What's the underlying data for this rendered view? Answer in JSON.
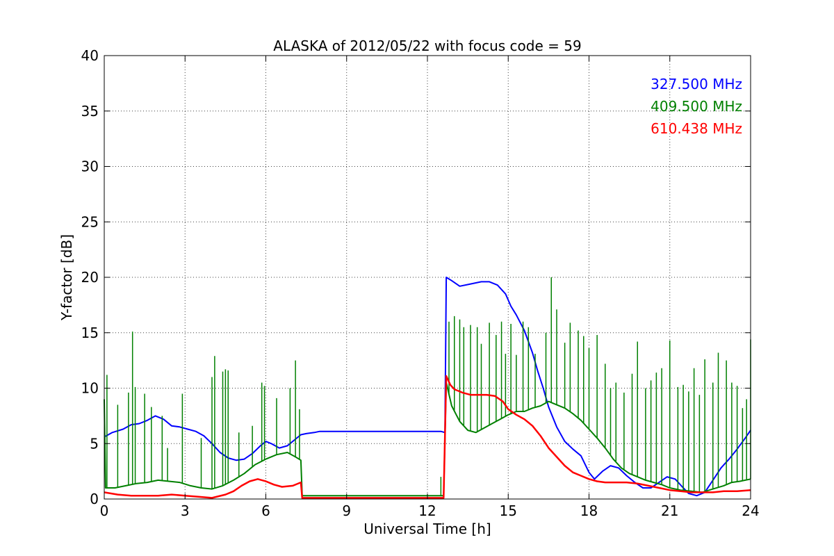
{
  "chart_data": {
    "type": "line",
    "title": "ALASKA of 2012/05/22 with focus code = 59",
    "xlabel": "Universal Time [h]",
    "ylabel": "Y-factor [dB]",
    "xlim": [
      0,
      24
    ],
    "ylim": [
      0,
      40
    ],
    "xticks": [
      0,
      3,
      6,
      9,
      12,
      15,
      18,
      21,
      24
    ],
    "yticks": [
      0,
      5,
      10,
      15,
      20,
      25,
      30,
      35,
      40
    ],
    "grid": true,
    "legend_position": "top-right",
    "series": [
      {
        "name": "327.500 MHz",
        "color": "#0000ff",
        "points": [
          [
            0,
            5.6
          ],
          [
            0.3,
            6.0
          ],
          [
            0.7,
            6.3
          ],
          [
            1.0,
            6.7
          ],
          [
            1.3,
            6.8
          ],
          [
            1.6,
            7.1
          ],
          [
            1.9,
            7.5
          ],
          [
            2.2,
            7.2
          ],
          [
            2.5,
            6.6
          ],
          [
            2.8,
            6.5
          ],
          [
            3.1,
            6.3
          ],
          [
            3.4,
            6.1
          ],
          [
            3.7,
            5.7
          ],
          [
            4.0,
            5.0
          ],
          [
            4.3,
            4.2
          ],
          [
            4.6,
            3.7
          ],
          [
            4.9,
            3.5
          ],
          [
            5.2,
            3.6
          ],
          [
            5.5,
            4.1
          ],
          [
            5.8,
            4.8
          ],
          [
            6.0,
            5.2
          ],
          [
            6.2,
            5.0
          ],
          [
            6.5,
            4.6
          ],
          [
            6.8,
            4.8
          ],
          [
            7.1,
            5.4
          ],
          [
            7.3,
            5.8
          ],
          [
            7.5,
            5.9
          ],
          [
            7.8,
            6.0
          ],
          [
            8.0,
            6.1
          ],
          [
            12.5,
            6.1
          ],
          [
            12.65,
            6.0
          ],
          [
            12.7,
            20.0
          ],
          [
            12.9,
            19.7
          ],
          [
            13.2,
            19.2
          ],
          [
            13.6,
            19.4
          ],
          [
            14.0,
            19.6
          ],
          [
            14.3,
            19.6
          ],
          [
            14.6,
            19.3
          ],
          [
            14.9,
            18.5
          ],
          [
            15.1,
            17.4
          ],
          [
            15.3,
            16.6
          ],
          [
            15.6,
            15.2
          ],
          [
            15.9,
            13.2
          ],
          [
            16.1,
            11.5
          ],
          [
            16.3,
            10.0
          ],
          [
            16.5,
            8.3
          ],
          [
            16.8,
            6.5
          ],
          [
            17.1,
            5.2
          ],
          [
            17.4,
            4.5
          ],
          [
            17.7,
            3.9
          ],
          [
            18.0,
            2.4
          ],
          [
            18.2,
            1.8
          ],
          [
            18.5,
            2.5
          ],
          [
            18.8,
            3.0
          ],
          [
            19.1,
            2.8
          ],
          [
            19.4,
            2.1
          ],
          [
            19.7,
            1.5
          ],
          [
            20.0,
            1.0
          ],
          [
            20.3,
            1.0
          ],
          [
            20.6,
            1.5
          ],
          [
            20.9,
            2.0
          ],
          [
            21.2,
            1.8
          ],
          [
            21.5,
            1.0
          ],
          [
            21.7,
            0.5
          ],
          [
            22.0,
            0.3
          ],
          [
            22.3,
            0.6
          ],
          [
            22.6,
            1.7
          ],
          [
            22.9,
            2.8
          ],
          [
            23.2,
            3.6
          ],
          [
            23.5,
            4.5
          ],
          [
            23.8,
            5.5
          ],
          [
            24,
            6.2
          ]
        ]
      },
      {
        "name": "409.500 MHz",
        "color": "#008000",
        "points": [
          [
            0,
            9.0
          ],
          [
            0.05,
            1.0
          ],
          [
            0.4,
            1.0
          ],
          [
            0.8,
            1.2
          ],
          [
            1.2,
            1.4
          ],
          [
            1.6,
            1.5
          ],
          [
            2.0,
            1.7
          ],
          [
            2.4,
            1.6
          ],
          [
            2.8,
            1.5
          ],
          [
            3.2,
            1.2
          ],
          [
            3.6,
            1.0
          ],
          [
            4.0,
            0.9
          ],
          [
            4.4,
            1.2
          ],
          [
            4.8,
            1.7
          ],
          [
            5.2,
            2.3
          ],
          [
            5.6,
            3.1
          ],
          [
            6.0,
            3.6
          ],
          [
            6.4,
            4.0
          ],
          [
            6.8,
            4.2
          ],
          [
            7.1,
            3.8
          ],
          [
            7.3,
            3.5
          ],
          [
            7.35,
            0.3
          ],
          [
            12.5,
            0.3
          ],
          [
            12.6,
            0.3
          ],
          [
            12.7,
            10.5
          ],
          [
            12.9,
            8.4
          ],
          [
            13.2,
            7.0
          ],
          [
            13.5,
            6.2
          ],
          [
            13.8,
            6.0
          ],
          [
            14.1,
            6.4
          ],
          [
            14.4,
            6.8
          ],
          [
            14.7,
            7.2
          ],
          [
            15.0,
            7.6
          ],
          [
            15.3,
            7.9
          ],
          [
            15.6,
            7.9
          ],
          [
            15.9,
            8.2
          ],
          [
            16.2,
            8.4
          ],
          [
            16.5,
            8.8
          ],
          [
            16.8,
            8.5
          ],
          [
            17.1,
            8.2
          ],
          [
            17.4,
            7.7
          ],
          [
            17.7,
            7.1
          ],
          [
            18.0,
            6.3
          ],
          [
            18.3,
            5.5
          ],
          [
            18.6,
            4.6
          ],
          [
            18.9,
            3.6
          ],
          [
            19.2,
            2.8
          ],
          [
            19.5,
            2.3
          ],
          [
            19.8,
            2.0
          ],
          [
            20.1,
            1.7
          ],
          [
            20.4,
            1.5
          ],
          [
            20.7,
            1.3
          ],
          [
            21.0,
            1.0
          ],
          [
            21.4,
            0.8
          ],
          [
            21.8,
            0.7
          ],
          [
            22.2,
            0.6
          ],
          [
            22.6,
            0.9
          ],
          [
            23.0,
            1.2
          ],
          [
            23.3,
            1.5
          ],
          [
            23.6,
            1.6
          ],
          [
            24,
            1.8
          ]
        ],
        "spikes": [
          [
            0.1,
            11.2
          ],
          [
            0.5,
            8.5
          ],
          [
            0.9,
            9.6
          ],
          [
            1.05,
            15.1
          ],
          [
            1.15,
            10.1
          ],
          [
            1.5,
            9.5
          ],
          [
            1.75,
            8.3
          ],
          [
            2.15,
            7.5
          ],
          [
            2.35,
            4.6
          ],
          [
            2.9,
            9.5
          ],
          [
            3.6,
            5.5
          ],
          [
            4.0,
            11.0
          ],
          [
            4.1,
            12.9
          ],
          [
            4.4,
            11.5
          ],
          [
            4.5,
            11.7
          ],
          [
            4.6,
            11.6
          ],
          [
            5.0,
            6.0
          ],
          [
            5.5,
            6.6
          ],
          [
            5.85,
            10.5
          ],
          [
            5.95,
            10.2
          ],
          [
            6.4,
            9.1
          ],
          [
            6.9,
            10.0
          ],
          [
            7.1,
            12.5
          ],
          [
            7.25,
            8.1
          ],
          [
            12.5,
            2.0
          ],
          [
            12.8,
            16.0
          ],
          [
            13.0,
            16.5
          ],
          [
            13.2,
            16.2
          ],
          [
            13.35,
            15.5
          ],
          [
            13.6,
            15.7
          ],
          [
            13.85,
            15.5
          ],
          [
            14.0,
            14.0
          ],
          [
            14.3,
            15.9
          ],
          [
            14.55,
            14.8
          ],
          [
            14.75,
            16.0
          ],
          [
            14.9,
            13.1
          ],
          [
            15.1,
            15.8
          ],
          [
            15.3,
            13.0
          ],
          [
            15.55,
            16.0
          ],
          [
            15.75,
            15.5
          ],
          [
            16.0,
            13.1
          ],
          [
            16.4,
            15.0
          ],
          [
            16.6,
            20.0
          ],
          [
            16.8,
            17.1
          ],
          [
            17.1,
            14.1
          ],
          [
            17.3,
            15.9
          ],
          [
            17.6,
            15.2
          ],
          [
            17.8,
            14.7
          ],
          [
            18.0,
            13.6
          ],
          [
            18.3,
            14.8
          ],
          [
            18.6,
            12.2
          ],
          [
            18.8,
            10.0
          ],
          [
            19.0,
            10.5
          ],
          [
            19.3,
            9.6
          ],
          [
            19.6,
            11.3
          ],
          [
            19.8,
            14.2
          ],
          [
            20.1,
            10.0
          ],
          [
            20.3,
            10.7
          ],
          [
            20.5,
            11.4
          ],
          [
            20.7,
            11.8
          ],
          [
            21.0,
            14.3
          ],
          [
            21.3,
            10.1
          ],
          [
            21.5,
            10.3
          ],
          [
            21.7,
            9.7
          ],
          [
            21.9,
            11.8
          ],
          [
            22.1,
            9.4
          ],
          [
            22.3,
            12.6
          ],
          [
            22.6,
            10.5
          ],
          [
            22.8,
            13.2
          ],
          [
            23.1,
            12.5
          ],
          [
            23.3,
            10.5
          ],
          [
            23.5,
            10.2
          ],
          [
            23.7,
            8.2
          ],
          [
            23.85,
            9.0
          ],
          [
            24,
            14.4
          ]
        ]
      },
      {
        "name": "610.438 MHz",
        "color": "#ff0000",
        "points": [
          [
            0,
            0.6
          ],
          [
            0.5,
            0.4
          ],
          [
            1.0,
            0.3
          ],
          [
            1.5,
            0.3
          ],
          [
            2.0,
            0.3
          ],
          [
            2.5,
            0.4
          ],
          [
            3.0,
            0.3
          ],
          [
            3.5,
            0.2
          ],
          [
            4.0,
            0.1
          ],
          [
            4.5,
            0.4
          ],
          [
            4.8,
            0.7
          ],
          [
            5.1,
            1.2
          ],
          [
            5.4,
            1.6
          ],
          [
            5.7,
            1.8
          ],
          [
            6.0,
            1.6
          ],
          [
            6.3,
            1.3
          ],
          [
            6.6,
            1.1
          ],
          [
            7.0,
            1.2
          ],
          [
            7.3,
            1.5
          ],
          [
            7.35,
            0.1
          ],
          [
            12.5,
            0.1
          ],
          [
            12.6,
            0.1
          ],
          [
            12.7,
            11.1
          ],
          [
            12.85,
            10.3
          ],
          [
            13.0,
            9.9
          ],
          [
            13.3,
            9.6
          ],
          [
            13.6,
            9.4
          ],
          [
            13.9,
            9.4
          ],
          [
            14.2,
            9.4
          ],
          [
            14.5,
            9.3
          ],
          [
            14.8,
            8.8
          ],
          [
            15.0,
            8.1
          ],
          [
            15.3,
            7.6
          ],
          [
            15.6,
            7.2
          ],
          [
            15.9,
            6.6
          ],
          [
            16.2,
            5.7
          ],
          [
            16.5,
            4.6
          ],
          [
            16.8,
            3.8
          ],
          [
            17.1,
            3.0
          ],
          [
            17.4,
            2.4
          ],
          [
            17.7,
            2.1
          ],
          [
            18.0,
            1.8
          ],
          [
            18.3,
            1.6
          ],
          [
            18.6,
            1.5
          ],
          [
            19.0,
            1.5
          ],
          [
            19.4,
            1.5
          ],
          [
            19.8,
            1.4
          ],
          [
            20.2,
            1.2
          ],
          [
            20.6,
            1.0
          ],
          [
            21.0,
            0.8
          ],
          [
            21.4,
            0.7
          ],
          [
            21.8,
            0.6
          ],
          [
            22.2,
            0.6
          ],
          [
            22.6,
            0.6
          ],
          [
            23.0,
            0.7
          ],
          [
            23.5,
            0.7
          ],
          [
            24,
            0.8
          ]
        ]
      }
    ]
  }
}
